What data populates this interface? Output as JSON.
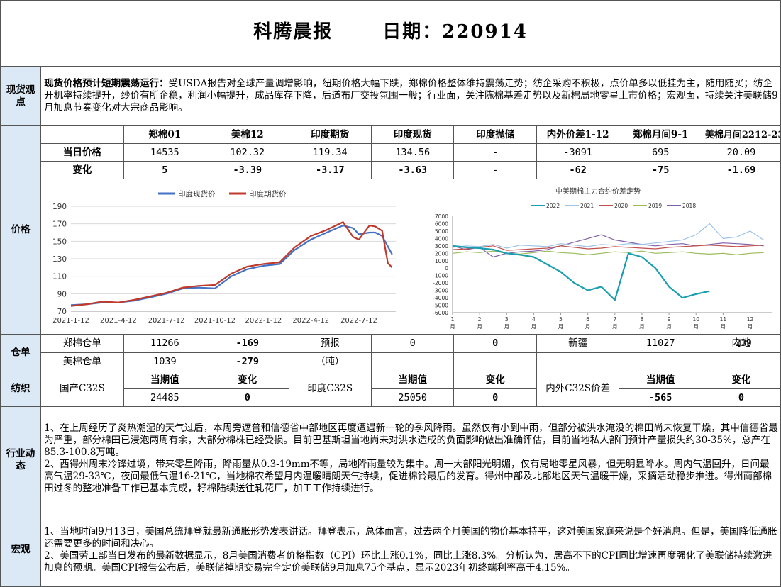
{
  "header": {
    "title": "科腾晨报",
    "date_label": "日期：",
    "date": "220914"
  },
  "spot": {
    "section": "现货观点",
    "headline": "现货价格预计短期震荡运行：",
    "text": "受USDA报告对全球产量调增影响，纽期价格大幅下跌，郑棉价格整体维持震荡走势；纺企采购不积极，点价单多以低挂为主，随用随买；纺企开机率持续提升，纱价有所企稳，利润小幅提升，成品库存下降，后道布厂交投氛围一般；行业面，关注陈棉基差走势以及新棉局地零星上市价格；宏观面，持续关注美联储9月加息节奏变化对大宗商品影响。"
  },
  "price": {
    "section": "价格",
    "columns": [
      "郑棉01",
      "美棉12",
      "印度期货",
      "印度现货",
      "印度抛储",
      "内外价差1-12",
      "郑棉月间9-1",
      "美棉月间2212-2312"
    ],
    "rows": [
      {
        "label": "当日价格",
        "values": [
          "14535",
          "102.32",
          "119.34",
          "134.56",
          "-",
          "-3091",
          "695",
          "20.09"
        ]
      },
      {
        "label": "变化",
        "values": [
          "5",
          "-3.39",
          "-3.17",
          "-3.63",
          "-",
          "-62",
          "-75",
          "-1.69"
        ]
      }
    ]
  },
  "chart_data": [
    {
      "type": "line",
      "title": "",
      "legend": "top",
      "x_tick_labels": [
        "2021-1-12",
        "2021-4-12",
        "2021-7-12",
        "2021-10-12",
        "2022-1-12",
        "2022-4-12",
        "2022-7-12"
      ],
      "x": [
        "2021-01-12",
        "2021-02-12",
        "2021-03-12",
        "2021-04-12",
        "2021-05-12",
        "2021-06-12",
        "2021-07-12",
        "2021-08-12",
        "2021-09-12",
        "2021-10-12",
        "2021-11-12",
        "2021-12-12",
        "2022-01-12",
        "2022-02-12",
        "2022-03-12",
        "2022-04-12",
        "2022-05-12",
        "2022-06-12",
        "2022-07-01",
        "2022-07-12",
        "2022-08-01",
        "2022-08-12",
        "2022-08-25",
        "2022-09-05",
        "2022-09-13"
      ],
      "series": [
        {
          "name": "印度现货价",
          "color": "#4472c4",
          "values": [
            77,
            78,
            80,
            80,
            82,
            86,
            90,
            96,
            97,
            96,
            110,
            118,
            122,
            124,
            140,
            152,
            160,
            168,
            165,
            158,
            160,
            160,
            156,
            144,
            135
          ]
        },
        {
          "name": "印度期货价",
          "color": "#c0392b",
          "values": [
            76,
            78,
            81,
            80,
            83,
            87,
            91,
            97,
            99,
            100,
            113,
            121,
            124,
            126,
            143,
            156,
            163,
            172,
            155,
            152,
            168,
            167,
            162,
            125,
            120
          ]
        }
      ],
      "ylim": [
        70,
        190
      ],
      "y_ticks": [
        70,
        90,
        110,
        130,
        150,
        170,
        190
      ],
      "grid": true
    },
    {
      "type": "line",
      "title": "中美期棉主力合约价差走势",
      "legend": "top",
      "x_tick_labels": [
        "1月",
        "2月",
        "3月",
        "4月",
        "5月",
        "6月",
        "7月",
        "8月",
        "9月",
        "10月",
        "11月",
        "12月"
      ],
      "x": [
        1,
        1.5,
        2,
        2.5,
        3,
        3.5,
        4,
        4.5,
        5,
        5.5,
        6,
        6.5,
        7,
        7.5,
        8,
        8.5,
        9,
        9.5,
        10,
        10.5,
        11,
        11.5,
        12,
        12.5
      ],
      "series": [
        {
          "name": "2022",
          "color": "#1a9fb0",
          "values": [
            3000,
            2800,
            2700,
            2500,
            2000,
            1800,
            1500,
            500,
            -500,
            -2000,
            -3000,
            -2500,
            -4300,
            2000,
            1500,
            0,
            -2500,
            -4000,
            -3500,
            -3100,
            null,
            null,
            null,
            null
          ]
        },
        {
          "name": "2021",
          "color": "#9dc3e6",
          "values": [
            2800,
            3000,
            2900,
            3200,
            2700,
            3100,
            3000,
            2900,
            3300,
            3100,
            2900,
            3200,
            3100,
            3300,
            3200,
            3400,
            3600,
            3800,
            4500,
            6000,
            4000,
            4200,
            5000,
            3800
          ]
        },
        {
          "name": "2020",
          "color": "#c0504d",
          "values": [
            2500,
            2600,
            2800,
            3000,
            2400,
            2500,
            2600,
            2700,
            3000,
            2800,
            2600,
            2700,
            2900,
            2800,
            2700,
            2600,
            2800,
            2900,
            3000,
            3100,
            3000,
            2900,
            3000,
            3100
          ]
        },
        {
          "name": "2019",
          "color": "#9bbb59",
          "values": [
            2000,
            2200,
            2100,
            2300,
            2000,
            1900,
            2100,
            2300,
            2100,
            2000,
            1800,
            2000,
            2200,
            2100,
            2300,
            2000,
            2100,
            2200,
            2000,
            1900,
            2000,
            1800,
            2000,
            2100
          ]
        },
        {
          "name": "2018",
          "color": "#7f5fa8",
          "values": [
            3000,
            2500,
            2800,
            1500,
            2000,
            2200,
            2300,
            2500,
            3000,
            3500,
            4000,
            4500,
            3800,
            3500,
            3200,
            3000,
            3200,
            3300,
            3000,
            3200,
            3400,
            3300,
            3200,
            3000
          ]
        }
      ],
      "ylim": [
        -6000,
        7000
      ],
      "y_ticks": [
        -6000,
        -5000,
        -4000,
        -3000,
        -2000,
        -1000,
        0,
        1000,
        2000,
        3000,
        4000,
        5000,
        6000,
        7000
      ],
      "grid": false
    }
  ],
  "warehouse": {
    "section": "仓单",
    "zz_label": "郑棉仓单",
    "zz_value": "11266",
    "zz_change": "-169",
    "forecast_label": "预报",
    "forecast_value": "0",
    "forecast_change": "0",
    "xinjiang_label": "新疆",
    "xinjiang_value": "11027",
    "inland_label": "内地",
    "inland_value": "239",
    "us_label": "美棉仓单",
    "us_value": "1039",
    "us_change": "-279",
    "unit": "（吨）"
  },
  "yarn": {
    "section": "纺织",
    "current_label": "当期值",
    "change_label": "变化",
    "domestic_label": "国产C32S",
    "domestic_value": "24485",
    "domestic_change": "0",
    "india_label": "印度C32S",
    "india_value": "25050",
    "india_change": "0",
    "spread_label": "内外C32S价差",
    "spread_value": "-565",
    "spread_change": "0"
  },
  "industry": {
    "section": "行业动态",
    "p1": "1、在上周经历了炎热潮湿的天气过后，本周旁遮普和信德省中部地区再度遭遇新一轮的季风降雨。虽然仅有小到中雨，但部分被洪水淹没的棉田尚未恢复干燥，其中信德省最为严重，部分棉田已浸泡两周有余，大部分棉株已经受损。目前巴基斯坦当地尚未对洪水造成的负面影响做出准确评估，目前当地私人部门预计产量损失约30-35%，总产在85.3-100.8万吨。",
    "p2": "2、西得州周末冷锋过境，带来零星降雨，降雨量从0.3-19mm不等，局地降雨量较为集中。周一大部阳光明媚，仅有局地零星风暴，但无明显降水。周内气温回升，日间最高气温29-33℃，夜间最低气温16-21℃，当地棉农希望月内温暖晴朗天气持续，促进棉铃最后的发育。得州中部及北部地区天气温暖干燥，采摘活动稳步推进。得州南部棉田过冬的整地准备工作已基本完成，籽棉陆续送往轧花厂，加工工作持续进行。"
  },
  "macro": {
    "section": "宏观",
    "p1": "1、当地时间9月13日，美国总统拜登就最新通胀形势发表讲话。拜登表示，总体而言，过去两个月美国的物价基本持平，这对美国家庭来说是个好消息。但是，美国降低通胀还需要更多的时间和决心。",
    "p2": "2、美国劳工部当日发布的最新数据显示，8月美国消费者价格指数（CPI）环比上涨0.1%，同比上涨8.3%。分析认为，居高不下的CPI同比增速再度强化了美联储持续激进加息的预期。美国CPI报告公布后，美联储掉期交易完全定价美联储9月加息75个基点，显示2023年初终端利率高于4.15%。"
  }
}
